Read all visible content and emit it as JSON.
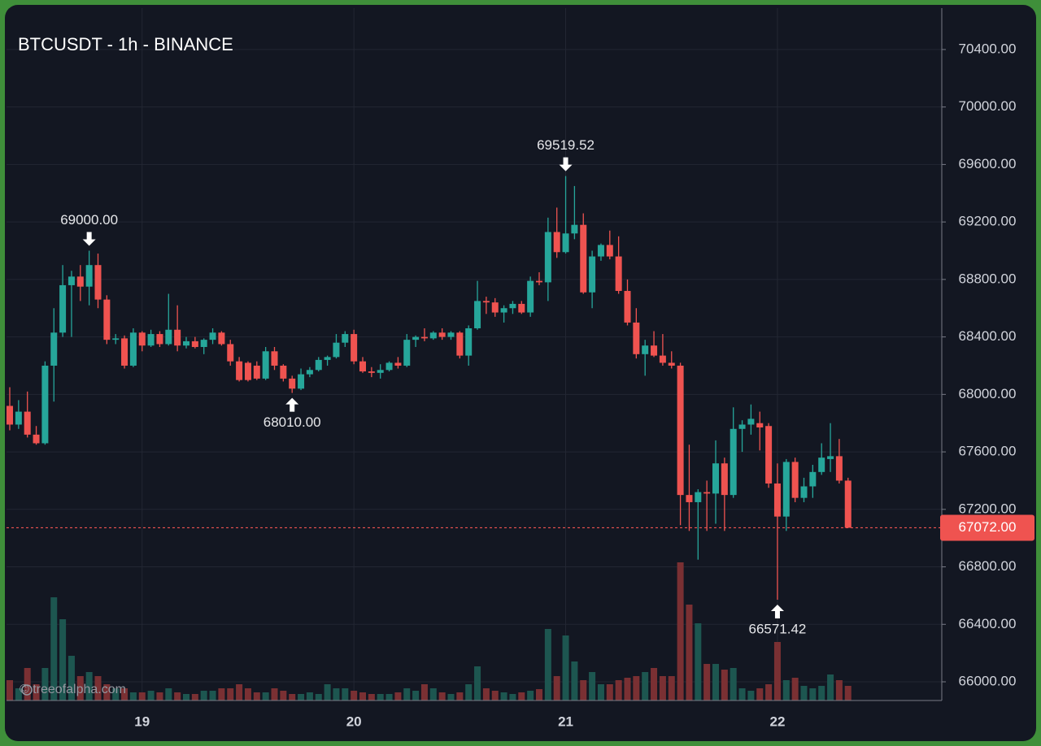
{
  "chart_data": {
    "type": "candlestick",
    "title": "BTCUSDT - 1h - BINANCE",
    "watermark": "© treeofalpha.com",
    "categories": [
      null,
      null,
      null,
      null,
      null,
      null,
      null,
      null,
      null,
      null,
      null,
      null,
      null,
      null,
      null,
      "19",
      null,
      null,
      null,
      null,
      null,
      null,
      null,
      null,
      null,
      null,
      null,
      null,
      null,
      null,
      null,
      null,
      null,
      null,
      null,
      null,
      null,
      null,
      null,
      "20",
      null,
      null,
      null,
      null,
      null,
      null,
      null,
      null,
      null,
      null,
      null,
      null,
      null,
      null,
      null,
      null,
      null,
      null,
      null,
      null,
      null,
      null,
      null,
      "21",
      null,
      null,
      null,
      null,
      null,
      null,
      null,
      null,
      null,
      null,
      null,
      null,
      null,
      null,
      null,
      null,
      null,
      null,
      null,
      null,
      null,
      null,
      null,
      "22",
      null,
      null,
      null,
      null,
      null,
      null,
      null,
      null
    ],
    "open": [
      67920,
      67790,
      67880,
      67720,
      67660,
      68200,
      68430,
      68760,
      68820,
      68750,
      68900,
      68660,
      68380,
      68390,
      68200,
      68430,
      68340,
      68420,
      68350,
      68450,
      68340,
      68370,
      68330,
      68380,
      68430,
      68350,
      68230,
      68220,
      68200,
      68110,
      68300,
      68200,
      68110,
      68040,
      68140,
      68170,
      68240,
      68260,
      68360,
      68420,
      68230,
      68160,
      68150,
      68170,
      68220,
      68200,
      68380,
      68400,
      68390,
      68430,
      68400,
      68430,
      68270,
      68460,
      68650,
      68640,
      68570,
      68600,
      68630,
      68570,
      68790,
      68780,
      69130,
      68990,
      69120,
      69180,
      68710,
      68960,
      69040,
      68960,
      68720,
      68500,
      68280,
      68340,
      68270,
      68220,
      68200,
      67300,
      67250,
      67320,
      67310,
      67520,
      67300,
      67760,
      67790,
      67800,
      67780,
      67380,
      67150,
      67530,
      67280,
      67360,
      67460,
      67550,
      67570,
      67400
    ],
    "high": [
      68050,
      67960,
      68020,
      67780,
      68230,
      68600,
      68900,
      68860,
      68900,
      69000,
      68980,
      68690,
      68420,
      68410,
      68460,
      68440,
      68450,
      68440,
      68700,
      68620,
      68400,
      68400,
      68390,
      68460,
      68440,
      68380,
      68260,
      68230,
      68230,
      68330,
      68330,
      68210,
      68130,
      68180,
      68190,
      68260,
      68270,
      68420,
      68440,
      68450,
      68260,
      68190,
      68210,
      68230,
      68260,
      68420,
      68410,
      68460,
      68440,
      68460,
      68440,
      68440,
      68480,
      68790,
      68680,
      68670,
      68620,
      68650,
      68650,
      68820,
      68850,
      69230,
      69300,
      69519.52,
      69450,
      69260,
      69000,
      69050,
      69140,
      69100,
      68800,
      68600,
      68380,
      68440,
      68420,
      68300,
      68220,
      67650,
      67340,
      67400,
      67680,
      67560,
      67910,
      67820,
      67930,
      67880,
      67800,
      67520,
      67550,
      67560,
      67420,
      67510,
      67660,
      67800,
      67690,
      67420
    ],
    "low": [
      67750,
      67760,
      67700,
      67650,
      67650,
      67950,
      68400,
      68400,
      68650,
      68620,
      68600,
      68350,
      68350,
      68180,
      68190,
      68300,
      68330,
      68330,
      68340,
      68300,
      68320,
      68320,
      68280,
      68350,
      68340,
      68200,
      68090,
      68090,
      68100,
      68100,
      68170,
      68090,
      68010,
      68030,
      68120,
      68160,
      68200,
      68250,
      68330,
      68210,
      68150,
      68120,
      68110,
      68160,
      68180,
      68190,
      68330,
      68370,
      68380,
      68380,
      68380,
      68250,
      68200,
      68450,
      68560,
      68540,
      68500,
      68560,
      68560,
      68540,
      68760,
      68650,
      68950,
      68980,
      69080,
      68700,
      68600,
      68930,
      68940,
      68700,
      68480,
      68250,
      68130,
      68260,
      68200,
      68180,
      67090,
      67050,
      66850,
      67050,
      67100,
      67050,
      67280,
      67600,
      67720,
      67610,
      67350,
      66571.42,
      67050,
      67250,
      67250,
      67280,
      67440,
      67460,
      67380,
      67072
    ],
    "close": [
      67790,
      67880,
      67720,
      67660,
      68200,
      68430,
      68760,
      68820,
      68750,
      68900,
      68660,
      68380,
      68390,
      68200,
      68430,
      68340,
      68420,
      68350,
      68450,
      68340,
      68370,
      68330,
      68380,
      68430,
      68350,
      68230,
      68100,
      68100,
      68110,
      68300,
      68200,
      68110,
      68040,
      68140,
      68170,
      68240,
      68260,
      68360,
      68420,
      68230,
      68160,
      68150,
      68170,
      68220,
      68200,
      68380,
      68400,
      68390,
      68430,
      68400,
      68430,
      68270,
      68460,
      68650,
      68640,
      68570,
      68600,
      68630,
      68570,
      68790,
      68780,
      69130,
      68990,
      69120,
      69180,
      68710,
      68960,
      69040,
      68960,
      68720,
      68500,
      68280,
      68340,
      68270,
      68220,
      68200,
      67300,
      67250,
      67320,
      67310,
      67520,
      67300,
      67760,
      67790,
      67830,
      67770,
      67380,
      67150,
      67530,
      67280,
      67360,
      67460,
      67560,
      67570,
      67400,
      67072
    ],
    "volume": [
      25,
      15,
      40,
      20,
      40,
      127,
      100,
      55,
      30,
      35,
      30,
      20,
      15,
      15,
      10,
      10,
      12,
      10,
      15,
      10,
      8,
      8,
      12,
      12,
      15,
      15,
      20,
      15,
      10,
      10,
      15,
      12,
      8,
      8,
      10,
      8,
      20,
      15,
      15,
      12,
      10,
      8,
      8,
      8,
      10,
      15,
      12,
      20,
      15,
      10,
      8,
      10,
      20,
      42,
      15,
      12,
      10,
      8,
      10,
      12,
      14,
      88,
      30,
      80,
      48,
      25,
      35,
      20,
      20,
      25,
      28,
      30,
      35,
      40,
      30,
      30,
      170,
      118,
      95,
      45,
      45,
      38,
      40,
      15,
      12,
      15,
      20,
      72,
      25,
      28,
      18,
      15,
      18,
      32,
      25,
      18
    ],
    "up_color": "#26a69a",
    "down_color": "#ef5350",
    "up_volume_color": "#1d5650",
    "down_volume_color": "#7a3033",
    "ylim": [
      65870,
      70688
    ],
    "yticks": [
      {
        "value": 66000,
        "label": "66000.00"
      },
      {
        "value": 66400,
        "label": "66400.00"
      },
      {
        "value": 66800,
        "label": "66800.00"
      },
      {
        "value": 67200,
        "label": "67200.00"
      },
      {
        "value": 67600,
        "label": "67600.00"
      },
      {
        "value": 68000,
        "label": "68000.00"
      },
      {
        "value": 68400,
        "label": "68400.00"
      },
      {
        "value": 68800,
        "label": "68800.00"
      },
      {
        "value": 69200,
        "label": "69200.00"
      },
      {
        "value": 69600,
        "label": "69600.00"
      },
      {
        "value": 70000,
        "label": "70000.00"
      },
      {
        "value": 70400,
        "label": "70400.00"
      }
    ],
    "grid": true,
    "last_price": {
      "value": 67072,
      "label": "67072.00"
    },
    "annotations": [
      {
        "value": 69000,
        "label": "69000.00"
      },
      {
        "value": 68010,
        "label": "68010.00"
      },
      {
        "value": 69519.52,
        "label": "69519.52"
      },
      {
        "value": 66571.42,
        "label": "66571.42"
      }
    ]
  }
}
